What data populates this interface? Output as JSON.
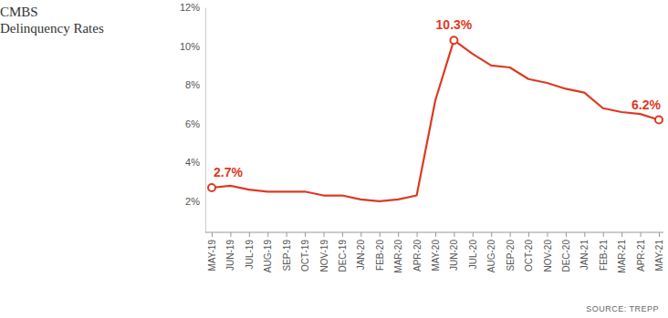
{
  "chart_data": {
    "type": "line",
    "title": "CMBS Delinquency Rates",
    "source": "SOURCE: TREPP",
    "categories": [
      "MAY-19",
      "JUN-19",
      "JUL-19",
      "AUG-19",
      "SEP-19",
      "OCT-19",
      "NOV-19",
      "DEC-19",
      "JAN-20",
      "FEB-20",
      "MAR-20",
      "APR-20",
      "MAY-20",
      "JUN-20",
      "JUL-20",
      "AUG-20",
      "SEP-20",
      "OCT-20",
      "NOV-20",
      "DEC-20",
      "JAN-21",
      "FEB-21",
      "MAR-21",
      "APR-21",
      "MAY-21"
    ],
    "values": [
      2.7,
      2.8,
      2.6,
      2.5,
      2.5,
      2.5,
      2.3,
      2.3,
      2.1,
      2.0,
      2.1,
      2.3,
      7.2,
      10.3,
      9.6,
      9.0,
      8.9,
      8.3,
      8.1,
      7.8,
      7.6,
      6.8,
      6.6,
      6.5,
      6.2
    ],
    "value_labels": [
      "2.7%",
      null,
      null,
      null,
      null,
      null,
      null,
      null,
      null,
      null,
      null,
      null,
      null,
      "10.3%",
      null,
      null,
      null,
      null,
      null,
      null,
      null,
      null,
      null,
      null,
      "6.2%"
    ],
    "data_labels": true,
    "marker": "circle",
    "color": "#dc3a22",
    "ylim": [
      0.4,
      12
    ],
    "yticks": [
      {
        "value": 2,
        "label": "2%"
      },
      {
        "value": 4,
        "label": "4%"
      },
      {
        "value": 6,
        "label": "6%"
      },
      {
        "value": 8,
        "label": "8%"
      },
      {
        "value": 10,
        "label": "10%"
      },
      {
        "value": 12,
        "label": "12%"
      }
    ],
    "grid": false
  }
}
